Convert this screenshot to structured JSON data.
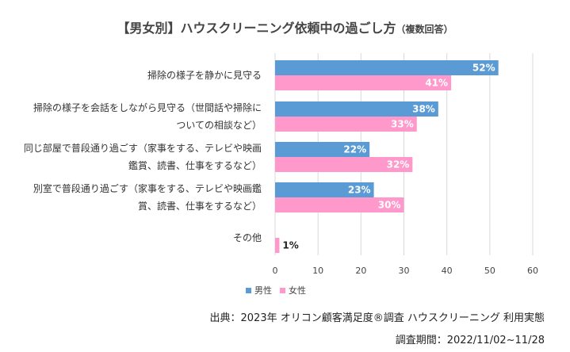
{
  "title": {
    "main": "【男女別】ハウスクリーニング依頼中の過ごし方",
    "sub": "（複数回答）"
  },
  "colors": {
    "male": "#5b9bd5",
    "female": "#ff99cc",
    "grid": "#d9d9d9"
  },
  "chart_data": {
    "type": "bar",
    "orientation": "horizontal",
    "categories": [
      [
        "掃除の様子を静かに見守る"
      ],
      [
        "掃除の様子を会話をしながら見守る（世間話や掃除に",
        "ついての相談など）"
      ],
      [
        "同じ部屋で普段通り過ごす（家事をする、テレビや映画",
        "鑑賞、読書、仕事をするなど）"
      ],
      [
        "別室で普段通り過ごす（家事をする、テレビや映画鑑",
        "賞、読書、仕事をするなど）"
      ],
      [
        "その他"
      ]
    ],
    "series": [
      {
        "name": "男性",
        "values": [
          52,
          38,
          22,
          23,
          0
        ],
        "labels": [
          "52%",
          "38%",
          "22%",
          "23%",
          ""
        ]
      },
      {
        "name": "女性",
        "values": [
          41,
          33,
          32,
          30,
          1
        ],
        "labels": [
          "41%",
          "33%",
          "32%",
          "30%",
          "1%"
        ]
      }
    ],
    "xlim": [
      0,
      60
    ],
    "xticks": [
      0,
      10,
      20,
      30,
      40,
      50,
      60
    ],
    "grid": true,
    "legend_position": "bottom"
  },
  "source": "出典：2023年 オリコン顧客満足度®調査 ハウスクリーニング 利用実態",
  "period": "調査期間：2022/11/02~11/28"
}
